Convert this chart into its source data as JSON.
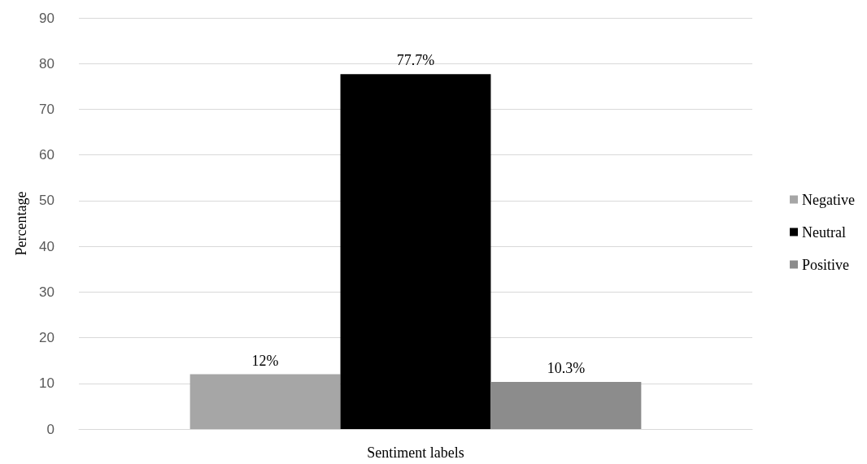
{
  "chart_data": {
    "type": "bar",
    "xlabel": "Sentiment labels",
    "ylabel": "Percentage",
    "categories": [
      null
    ],
    "series": [
      {
        "name": "Negative",
        "color": "#a6a6a6",
        "values": [
          12
        ],
        "value_labels": [
          "12%"
        ]
      },
      {
        "name": "Neutral",
        "color": "#000000",
        "values": [
          77.7
        ],
        "value_labels": [
          "77.7%"
        ]
      },
      {
        "name": "Positive",
        "color": "#8c8c8c",
        "values": [
          10.3
        ],
        "value_labels": [
          "10.3%"
        ]
      }
    ],
    "ylim": [
      0,
      90
    ],
    "yticks": [
      0,
      10,
      20,
      30,
      40,
      50,
      60,
      70,
      80,
      90
    ],
    "grid": "y",
    "legend": "right"
  }
}
